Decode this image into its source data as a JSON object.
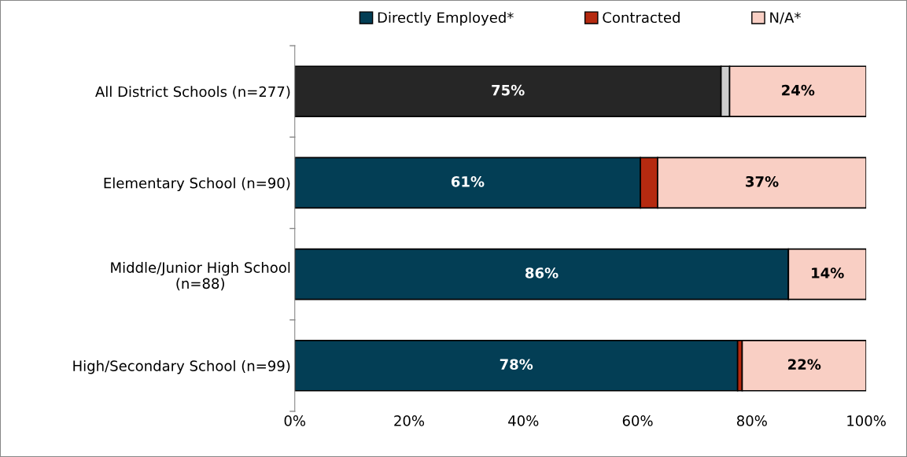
{
  "chart_data": {
    "type": "bar",
    "orientation": "horizontal",
    "stacked": true,
    "categories": [
      "All District Schools (n=277)",
      "Elementary School (n=90)",
      "Middle/Junior High School\n(n=88)",
      "High/Secondary School (n=99)"
    ],
    "series": [
      {
        "name": "Directly Employed*",
        "color": "#033e55",
        "colors": [
          "#262626",
          "#033e55",
          "#033e55",
          "#033e55"
        ],
        "values": [
          74.6,
          60.5,
          86.4,
          77.5
        ],
        "value_labels": [
          "75%",
          "61%",
          "86%",
          "78%"
        ]
      },
      {
        "name": "Contracted",
        "color": "#b52a10",
        "colors": [
          "#cccccc",
          "#b52a10",
          "#b52a10",
          "#b52a10"
        ],
        "values": [
          1.5,
          3.0,
          0,
          0.8
        ],
        "value_labels": [
          null,
          null,
          null,
          null
        ]
      },
      {
        "name": "N/A*",
        "color": "#f9cfc4",
        "values": [
          23.9,
          36.5,
          13.6,
          21.7
        ],
        "value_labels": [
          "24%",
          "37%",
          "14%",
          "22%"
        ]
      }
    ],
    "xlim": [
      0,
      100
    ],
    "xticks": [
      {
        "value": 0,
        "label": "0%"
      },
      {
        "value": 20,
        "label": "20%"
      },
      {
        "value": 40,
        "label": "40%"
      },
      {
        "value": 60,
        "label": "60%"
      },
      {
        "value": 80,
        "label": "80%"
      },
      {
        "value": 100,
        "label": "100%"
      }
    ],
    "grid": false,
    "legend": "top"
  }
}
